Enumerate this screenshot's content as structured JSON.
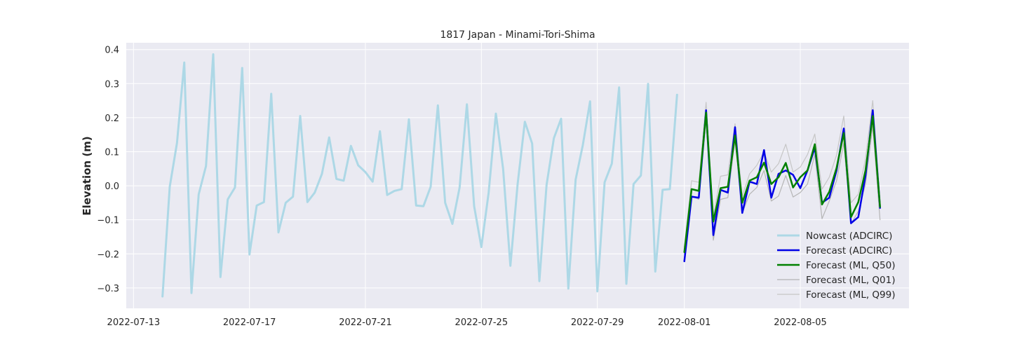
{
  "chart_data": {
    "type": "line",
    "title": "1817 Japan - Minami-Tori-Shima",
    "xlabel": "",
    "ylabel": "Elevation (m)",
    "xlim": [
      "2022-07-12T18:00",
      "2022-08-08T18:00"
    ],
    "ylim": [
      -0.36,
      0.42
    ],
    "x_ticks": [
      "2022-07-13",
      "2022-07-17",
      "2022-07-21",
      "2022-07-25",
      "2022-07-29",
      "2022-08-01",
      "2022-08-05"
    ],
    "y_ticks": [
      -0.3,
      -0.2,
      -0.1,
      0.0,
      0.1,
      0.2,
      0.3,
      0.4
    ],
    "y_tick_labels": [
      "−0.3",
      "−0.2",
      "−0.1",
      "0.0",
      "0.1",
      "0.2",
      "0.3",
      "0.4"
    ],
    "grid": true,
    "legend_placement": "bottom-right",
    "series": [
      {
        "name": "Nowcast (ADCIRC)",
        "color": "#add8e6",
        "x": [
          "2022-07-14T00:00",
          "2022-07-14T06:00",
          "2022-07-14T12:00",
          "2022-07-14T18:00",
          "2022-07-15T00:00",
          "2022-07-15T06:00",
          "2022-07-15T12:00",
          "2022-07-15T18:00",
          "2022-07-16T00:00",
          "2022-07-16T06:00",
          "2022-07-16T12:00",
          "2022-07-16T18:00",
          "2022-07-17T00:00",
          "2022-07-17T06:00",
          "2022-07-17T12:00",
          "2022-07-17T18:00",
          "2022-07-18T00:00",
          "2022-07-18T06:00",
          "2022-07-18T12:00",
          "2022-07-18T18:00",
          "2022-07-19T00:00",
          "2022-07-19T06:00",
          "2022-07-19T12:00",
          "2022-07-19T18:00",
          "2022-07-20T00:00",
          "2022-07-20T06:00",
          "2022-07-20T12:00",
          "2022-07-20T18:00",
          "2022-07-21T00:00",
          "2022-07-21T06:00",
          "2022-07-21T12:00",
          "2022-07-21T18:00",
          "2022-07-22T00:00",
          "2022-07-22T06:00",
          "2022-07-22T12:00",
          "2022-07-22T18:00",
          "2022-07-23T00:00",
          "2022-07-23T06:00",
          "2022-07-23T12:00",
          "2022-07-23T18:00",
          "2022-07-24T00:00",
          "2022-07-24T06:00",
          "2022-07-24T12:00",
          "2022-07-24T18:00",
          "2022-07-25T00:00",
          "2022-07-25T06:00",
          "2022-07-25T12:00",
          "2022-07-25T18:00",
          "2022-07-26T00:00",
          "2022-07-26T06:00",
          "2022-07-26T12:00",
          "2022-07-26T18:00",
          "2022-07-27T00:00",
          "2022-07-27T06:00",
          "2022-07-27T12:00",
          "2022-07-27T18:00",
          "2022-07-28T00:00",
          "2022-07-28T06:00",
          "2022-07-28T12:00",
          "2022-07-28T18:00",
          "2022-07-29T00:00",
          "2022-07-29T06:00",
          "2022-07-29T12:00",
          "2022-07-29T18:00",
          "2022-07-30T00:00",
          "2022-07-30T06:00",
          "2022-07-30T12:00",
          "2022-07-30T18:00",
          "2022-07-31T00:00",
          "2022-07-31T06:00",
          "2022-07-31T12:00",
          "2022-07-31T18:00"
        ],
        "values": [
          -0.325,
          -0.003,
          0.125,
          0.362,
          -0.315,
          -0.025,
          0.058,
          0.386,
          -0.268,
          -0.04,
          -0.005,
          0.346,
          -0.202,
          -0.058,
          -0.048,
          0.27,
          -0.137,
          -0.05,
          -0.032,
          0.205,
          -0.048,
          -0.02,
          0.035,
          0.142,
          0.02,
          0.015,
          0.117,
          0.06,
          0.04,
          0.012,
          0.16,
          -0.027,
          -0.015,
          -0.01,
          0.195,
          -0.058,
          -0.06,
          -0.003,
          0.236,
          -0.05,
          -0.112,
          -0.005,
          0.239,
          -0.06,
          -0.18,
          -0.02,
          0.212,
          0.05,
          -0.235,
          0.005,
          0.188,
          0.124,
          -0.28,
          0.003,
          0.14,
          0.197,
          -0.302,
          0.018,
          0.12,
          0.248,
          -0.31,
          0.01,
          0.065,
          0.289,
          -0.288,
          0.005,
          0.03,
          0.299,
          -0.252,
          -0.012,
          -0.01,
          0.267
        ]
      },
      {
        "name": "Forecast (ADCIRC)",
        "color": "#0000e6",
        "x": [
          "2022-08-01T00:00",
          "2022-08-01T06:00",
          "2022-08-01T12:00",
          "2022-08-01T18:00",
          "2022-08-02T00:00",
          "2022-08-02T06:00",
          "2022-08-02T12:00",
          "2022-08-02T18:00",
          "2022-08-03T00:00",
          "2022-08-03T06:00",
          "2022-08-03T12:00",
          "2022-08-03T18:00",
          "2022-08-04T00:00",
          "2022-08-04T06:00",
          "2022-08-04T12:00",
          "2022-08-04T18:00",
          "2022-08-05T00:00",
          "2022-08-05T06:00",
          "2022-08-05T12:00",
          "2022-08-05T18:00",
          "2022-08-06T00:00",
          "2022-08-06T06:00",
          "2022-08-06T12:00",
          "2022-08-06T18:00",
          "2022-08-07T00:00",
          "2022-08-07T06:00",
          "2022-08-07T12:00",
          "2022-08-07T18:00"
        ],
        "values": [
          -0.222,
          -0.032,
          -0.035,
          0.222,
          -0.145,
          -0.012,
          -0.02,
          0.172,
          -0.08,
          0.012,
          0.005,
          0.105,
          -0.035,
          0.035,
          0.045,
          0.032,
          -0.007,
          0.045,
          0.112,
          -0.05,
          -0.035,
          0.045,
          0.168,
          -0.11,
          -0.092,
          0.03,
          0.222,
          -0.065
        ]
      },
      {
        "name": "Forecast (ML, Q50)",
        "color": "#008000",
        "x": [
          "2022-08-01T00:00",
          "2022-08-01T06:00",
          "2022-08-01T12:00",
          "2022-08-01T18:00",
          "2022-08-02T00:00",
          "2022-08-02T06:00",
          "2022-08-02T12:00",
          "2022-08-02T18:00",
          "2022-08-03T00:00",
          "2022-08-03T06:00",
          "2022-08-03T12:00",
          "2022-08-03T18:00",
          "2022-08-04T00:00",
          "2022-08-04T06:00",
          "2022-08-04T12:00",
          "2022-08-04T18:00",
          "2022-08-05T00:00",
          "2022-08-05T06:00",
          "2022-08-05T12:00",
          "2022-08-05T18:00",
          "2022-08-06T00:00",
          "2022-08-06T06:00",
          "2022-08-06T12:00",
          "2022-08-06T18:00",
          "2022-08-07T00:00",
          "2022-08-07T06:00",
          "2022-08-07T12:00",
          "2022-08-07T18:00"
        ],
        "values": [
          -0.195,
          -0.01,
          -0.015,
          0.215,
          -0.105,
          -0.007,
          -0.003,
          0.148,
          -0.05,
          0.015,
          0.025,
          0.068,
          0.005,
          0.025,
          0.067,
          -0.005,
          0.025,
          0.045,
          0.122,
          -0.055,
          -0.018,
          0.052,
          0.155,
          -0.092,
          -0.048,
          0.045,
          0.205,
          -0.062
        ]
      },
      {
        "name": "Forecast (ML, Q01)",
        "color": "#b5b5b5",
        "x": [
          "2022-08-01T00:00",
          "2022-08-01T06:00",
          "2022-08-01T12:00",
          "2022-08-01T18:00",
          "2022-08-02T00:00",
          "2022-08-02T06:00",
          "2022-08-02T12:00",
          "2022-08-02T18:00",
          "2022-08-03T00:00",
          "2022-08-03T06:00",
          "2022-08-03T12:00",
          "2022-08-03T18:00",
          "2022-08-04T00:00",
          "2022-08-04T06:00",
          "2022-08-04T12:00",
          "2022-08-04T18:00",
          "2022-08-05T00:00",
          "2022-08-05T06:00",
          "2022-08-05T12:00",
          "2022-08-05T18:00",
          "2022-08-06T00:00",
          "2022-08-06T06:00",
          "2022-08-06T12:00",
          "2022-08-06T18:00",
          "2022-08-07T00:00",
          "2022-08-07T06:00",
          "2022-08-07T12:00",
          "2022-08-07T18:00"
        ],
        "values": [
          -0.2,
          -0.03,
          -0.04,
          0.19,
          -0.16,
          -0.04,
          -0.035,
          0.135,
          -0.08,
          -0.025,
          -0.005,
          0.045,
          -0.045,
          -0.03,
          0.03,
          -0.033,
          -0.02,
          0.005,
          0.092,
          -0.097,
          -0.045,
          0.015,
          0.125,
          -0.112,
          -0.075,
          0.005,
          0.175,
          -0.1
        ]
      },
      {
        "name": "Forecast (ML, Q99)",
        "color": "#c6c6c6",
        "x": [
          "2022-08-01T00:00",
          "2022-08-01T06:00",
          "2022-08-01T12:00",
          "2022-08-01T18:00",
          "2022-08-02T00:00",
          "2022-08-02T06:00",
          "2022-08-02T12:00",
          "2022-08-02T18:00",
          "2022-08-03T00:00",
          "2022-08-03T06:00",
          "2022-08-03T12:00",
          "2022-08-03T18:00",
          "2022-08-04T00:00",
          "2022-08-04T06:00",
          "2022-08-04T12:00",
          "2022-08-04T18:00",
          "2022-08-05T00:00",
          "2022-08-05T06:00",
          "2022-08-05T12:00",
          "2022-08-05T18:00",
          "2022-08-06T00:00",
          "2022-08-06T06:00",
          "2022-08-06T12:00",
          "2022-08-06T18:00",
          "2022-08-07T00:00",
          "2022-08-07T06:00",
          "2022-08-07T12:00",
          "2022-08-07T18:00"
        ],
        "values": [
          -0.18,
          0.015,
          0.01,
          0.245,
          -0.09,
          0.028,
          0.032,
          0.182,
          -0.03,
          0.035,
          0.06,
          0.1,
          0.04,
          0.065,
          0.122,
          0.04,
          0.055,
          0.092,
          0.152,
          -0.01,
          0.025,
          0.09,
          0.205,
          -0.05,
          -0.025,
          0.08,
          0.25,
          -0.04
        ]
      }
    ]
  }
}
